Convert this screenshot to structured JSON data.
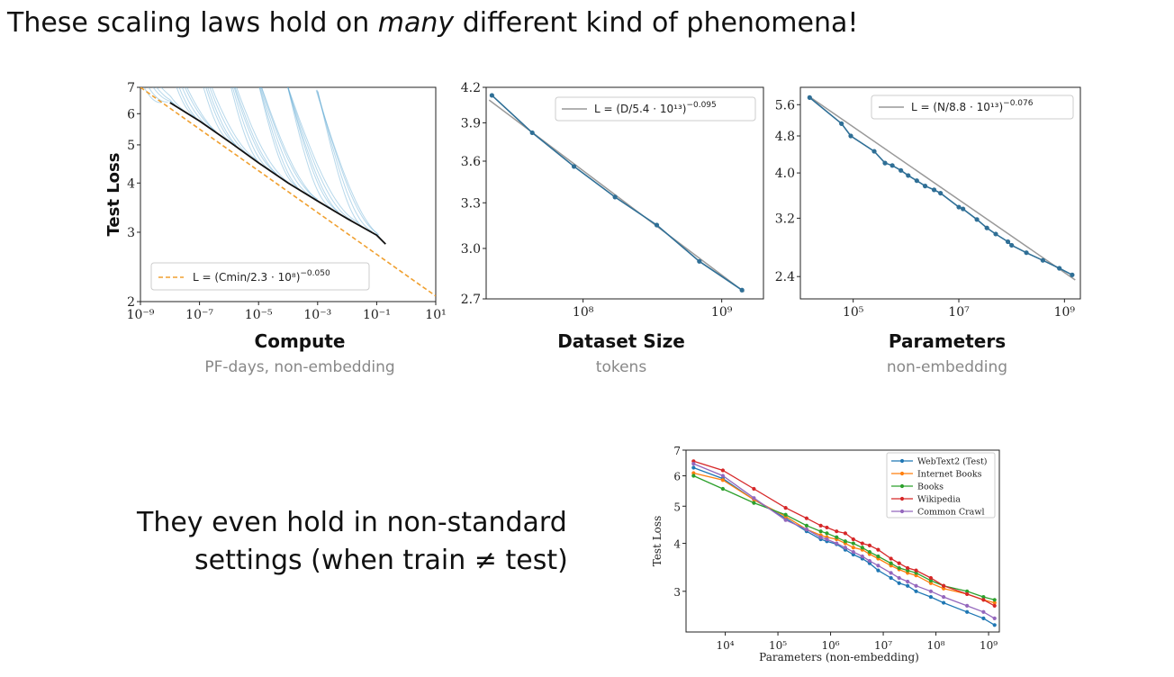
{
  "slide": {
    "title_pre": "These scaling laws hold on ",
    "title_em": "many",
    "title_post": " different kind of phenomena!",
    "note_line1": "They even hold in non-standard",
    "note_line2": "settings (when train ≠ test)"
  },
  "chart_data": [
    {
      "type": "line",
      "id": "compute",
      "xlabel": "Compute",
      "xsublabel": "PF-days, non-embedding",
      "ylabel": "Test Loss",
      "xscale": "log",
      "yscale": "log",
      "xlim": [
        1e-09,
        10
      ],
      "ylim": [
        2,
        7
      ],
      "xticks": [
        "10⁻⁹",
        "10⁻⁷",
        "10⁻⁵",
        "10⁻³",
        "10⁻¹",
        "10¹"
      ],
      "yticks": [
        "2",
        "3",
        "4",
        "5",
        "6",
        "7"
      ],
      "legend": "L = (Cmin/2.3 · 10⁸)−0.050",
      "legend_position": "lower-left",
      "fit": {
        "name": "L = (Cmin/2.3 · 10⁸)−0.050",
        "C": 230000000.0,
        "alpha": 0.05,
        "color": "#f0a030"
      },
      "frontier": {
        "x": [
          1e-08,
          1e-07,
          1e-06,
          1e-05,
          0.0001,
          0.001,
          0.01,
          0.1,
          0.2
        ],
        "y": [
          6.4,
          5.75,
          5.1,
          4.5,
          4.0,
          3.6,
          3.25,
          2.95,
          2.8
        ]
      },
      "series_color": "#5fa8d3"
    },
    {
      "type": "line",
      "id": "dataset",
      "xlabel": "Dataset Size",
      "xsublabel": "tokens",
      "xscale": "log",
      "xlim": [
        20000000.0,
        2000000000.0
      ],
      "ylim": [
        2.7,
        4.2
      ],
      "xticks": [
        "10⁸",
        "10⁹"
      ],
      "yticks": [
        "2.7",
        "3.0",
        "3.3",
        "3.6",
        "3.9",
        "4.2"
      ],
      "legend": "L = (D/5.4 · 10¹³)−0.095",
      "legend_position": "top-right",
      "x": [
        22000000.0,
        43000000.0,
        86000000.0,
        170000000.0,
        340000000.0,
        690000000.0,
        1400000000.0
      ],
      "y": [
        4.13,
        3.82,
        3.56,
        3.34,
        3.15,
        2.92,
        2.75
      ],
      "fit": {
        "D": 54000000000000.0,
        "alpha": 0.095
      },
      "color": "#2f6f96"
    },
    {
      "type": "line",
      "id": "parameters",
      "xlabel": "Parameters",
      "xsublabel": "non-embedding",
      "xscale": "log",
      "xlim": [
        10000.0,
        2000000000.0
      ],
      "ylim": [
        2.15,
        6.1
      ],
      "xticks": [
        "10⁵",
        "10⁷",
        "10⁹"
      ],
      "yticks": [
        "2.4",
        "3.2",
        "4.0",
        "4.8",
        "5.6"
      ],
      "legend": "L = (N/8.8 · 10¹³)−0.076",
      "legend_position": "top-right",
      "x": [
        15000.0,
        60000.0,
        90000.0,
        250000.0,
        400000.0,
        550000.0,
        800000.0,
        1100000.0,
        1600000.0,
        2300000.0,
        3400000.0,
        4500000.0,
        10000000.0,
        12000000.0,
        22000000.0,
        34000000.0,
        50000000.0,
        85000000.0,
        100000000.0,
        190000000.0,
        390000000.0,
        800000000.0,
        1400000000.0
      ],
      "y": [
        5.8,
        5.1,
        4.8,
        4.45,
        4.2,
        4.15,
        4.05,
        3.95,
        3.85,
        3.75,
        3.68,
        3.62,
        3.38,
        3.35,
        3.18,
        3.05,
        2.96,
        2.85,
        2.8,
        2.7,
        2.6,
        2.5,
        2.42
      ],
      "fit": {
        "N": 88000000000000.0,
        "alpha": 0.076
      },
      "color": "#2f6f96"
    },
    {
      "type": "line",
      "id": "transfer",
      "xlabel": "Parameters (non-embedding)",
      "ylabel": "Test Loss",
      "xscale": "log",
      "yscale": "log",
      "xlim": [
        1800.0,
        1600000000.0
      ],
      "ylim": [
        2.35,
        7
      ],
      "xticks": [
        "10⁴",
        "10⁵",
        "10⁶",
        "10⁷",
        "10⁸",
        "10⁹"
      ],
      "yticks": [
        "3",
        "4",
        "5",
        "6",
        "7"
      ],
      "legend_position": "top-right",
      "x": [
        2500.0,
        9000.0,
        35000.0,
        140000.0,
        350000.0,
        650000.0,
        850000.0,
        1300000.0,
        1900000.0,
        2700000.0,
        4000000.0,
        5500000.0,
        8000000.0,
        14000000.0,
        20000000.0,
        29000000.0,
        42000000.0,
        80000000.0,
        140000000.0,
        390000000.0,
        800000000.0,
        1300000000.0
      ],
      "series": [
        {
          "name": "WebText2 (Test)",
          "color": "#1f77b4",
          "y": [
            6.3,
            5.9,
            5.2,
            4.65,
            4.3,
            4.1,
            4.05,
            3.98,
            3.85,
            3.74,
            3.65,
            3.55,
            3.4,
            3.25,
            3.15,
            3.1,
            3.0,
            2.9,
            2.8,
            2.65,
            2.55,
            2.45
          ]
        },
        {
          "name": "Internet Books",
          "color": "#ff7f0e",
          "y": [
            6.1,
            5.85,
            5.2,
            4.7,
            4.35,
            4.2,
            4.15,
            4.1,
            4.0,
            3.9,
            3.85,
            3.75,
            3.65,
            3.5,
            3.42,
            3.35,
            3.3,
            3.15,
            3.05,
            2.95,
            2.85,
            2.8
          ]
        },
        {
          "name": "Books",
          "color": "#2ca02c",
          "y": [
            6.0,
            5.55,
            5.1,
            4.75,
            4.45,
            4.3,
            4.25,
            4.15,
            4.05,
            4.0,
            3.9,
            3.8,
            3.7,
            3.55,
            3.45,
            3.4,
            3.35,
            3.2,
            3.1,
            3.0,
            2.9,
            2.85
          ]
        },
        {
          "name": "Wikipedia",
          "color": "#d62728",
          "y": [
            6.55,
            6.2,
            5.55,
            4.95,
            4.65,
            4.45,
            4.4,
            4.3,
            4.25,
            4.1,
            4.0,
            3.95,
            3.85,
            3.65,
            3.55,
            3.45,
            3.4,
            3.25,
            3.1,
            2.95,
            2.85,
            2.75
          ]
        },
        {
          "name": "Common Crawl",
          "color": "#9467bd",
          "y": [
            6.45,
            6.0,
            5.25,
            4.6,
            4.35,
            4.15,
            4.1,
            4.0,
            3.9,
            3.8,
            3.7,
            3.6,
            3.5,
            3.35,
            3.25,
            3.18,
            3.1,
            3.0,
            2.9,
            2.75,
            2.65,
            2.55
          ]
        }
      ]
    }
  ]
}
